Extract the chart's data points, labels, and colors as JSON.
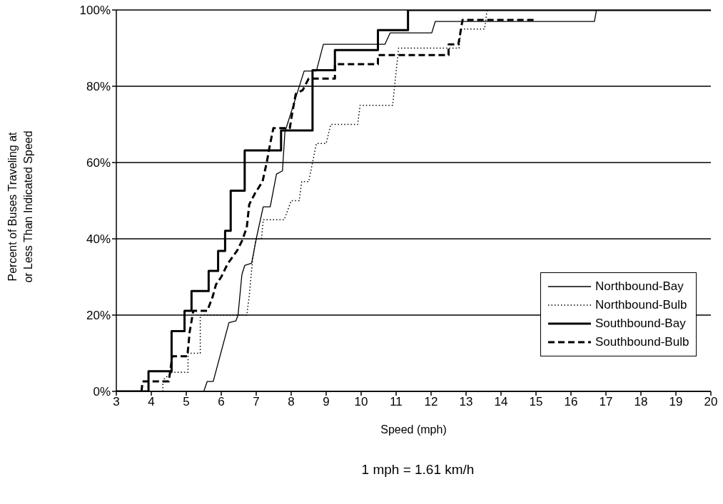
{
  "chart_data": {
    "type": "line",
    "xlabel": "Speed (mph)",
    "ylabel": "Percent of Buses Traveling at or Less Than Indicated Speed",
    "annotations": [
      "1 mph = 1.61 km/h"
    ],
    "xlim": [
      3,
      20
    ],
    "xticks": [
      3,
      4,
      5,
      6,
      7,
      8,
      9,
      10,
      11,
      12,
      13,
      14,
      15,
      16,
      17,
      18,
      19,
      20
    ],
    "ylim": [
      0,
      100
    ],
    "yticks": [
      {
        "value": 0,
        "label": "0%"
      },
      {
        "value": 20,
        "label": "20%"
      },
      {
        "value": 40,
        "label": "40%"
      },
      {
        "value": 60,
        "label": "60%"
      },
      {
        "value": 80,
        "label": "80%"
      },
      {
        "value": 100,
        "label": "100%"
      }
    ],
    "grid": "y",
    "legend": "bottom right",
    "marker": "none",
    "series": [
      {
        "name": "Northbound-Bay",
        "color": "#000000",
        "line_style": "solid",
        "x": [
          5.5,
          5.6,
          5.77,
          6.22,
          6.42,
          6.48,
          6.59,
          6.67,
          6.87,
          7.0,
          7.2,
          7.4,
          7.58,
          7.75,
          7.82,
          8.37,
          8.72,
          8.92,
          10.68,
          10.83,
          12.02,
          12.12,
          16.67,
          16.73,
          20
        ],
        "values": [
          0,
          2.6,
          2.6,
          18,
          18.5,
          20,
          30.6,
          33,
          33.6,
          40,
          48.4,
          48.4,
          57,
          57.8,
          68,
          84,
          84,
          91,
          91,
          94,
          94,
          97,
          97,
          100,
          100
        ]
      },
      {
        "name": "Northbound-Bulb",
        "color": "#000000",
        "line_style": "dotted",
        "x": [
          4.33,
          4.33,
          4.6,
          4.6,
          5.05,
          5.05,
          5.4,
          5.4,
          6.73,
          6.8,
          6.85,
          6.9,
          7.0,
          7.15,
          7.2,
          7.8,
          8.0,
          8.23,
          8.3,
          8.5,
          8.72,
          9.0,
          9.13,
          9.9,
          9.97,
          10.9,
          11.07,
          12.8,
          12.85,
          13.53,
          13.6,
          20
        ],
        "values": [
          0,
          3,
          5,
          5,
          5,
          10,
          10,
          20,
          20,
          25,
          30,
          35,
          40,
          40,
          45,
          45,
          50,
          50,
          55,
          55,
          65,
          65,
          70,
          70,
          75,
          75,
          90,
          90,
          95,
          95,
          100,
          100
        ]
      },
      {
        "name": "Southbound-Bay",
        "color": "#000000",
        "line_style": "solid",
        "x": [
          3,
          3.92,
          3.92,
          4.58,
          4.58,
          4.95,
          4.95,
          5.15,
          5.15,
          5.64,
          5.64,
          5.91,
          5.91,
          6.11,
          6.11,
          6.27,
          6.27,
          6.67,
          6.67,
          7.71,
          7.71,
          8.61,
          8.61,
          9.25,
          9.25,
          10.48,
          10.48,
          11.34,
          11.34,
          20
        ],
        "values": [
          0,
          0,
          5.3,
          5.3,
          15.8,
          15.8,
          21.1,
          21.1,
          26.3,
          26.3,
          31.6,
          31.6,
          36.8,
          36.8,
          42.1,
          42.1,
          52.6,
          52.6,
          63.2,
          63.2,
          68.4,
          68.4,
          84.2,
          84.2,
          89.5,
          89.5,
          94.7,
          94.7,
          100,
          100
        ]
      },
      {
        "name": "Southbound-Bulb",
        "color": "#000000",
        "line_style": "dashed",
        "x": [
          3.72,
          3.75,
          4.5,
          4.6,
          5.03,
          5.1,
          5.2,
          5.6,
          5.75,
          5.85,
          6.0,
          6.18,
          6.46,
          6.6,
          6.73,
          6.8,
          6.97,
          7.18,
          7.3,
          7.4,
          7.49,
          7.96,
          8.03,
          8.13,
          8.33,
          8.5,
          9.25,
          9.25,
          10.48,
          10.48,
          12.5,
          12.5,
          12.78,
          12.85,
          12.9,
          14.97
        ],
        "values": [
          0,
          2.6,
          2.6,
          9.2,
          9.2,
          15.8,
          21.1,
          21.1,
          24.7,
          28,
          30,
          33.4,
          37,
          39.6,
          43,
          49,
          52,
          55,
          60,
          65,
          69,
          69,
          73,
          78,
          79,
          82,
          82,
          85.8,
          85.8,
          88.2,
          88.2,
          91,
          91,
          94.7,
          97.4,
          97.4
        ]
      }
    ]
  }
}
